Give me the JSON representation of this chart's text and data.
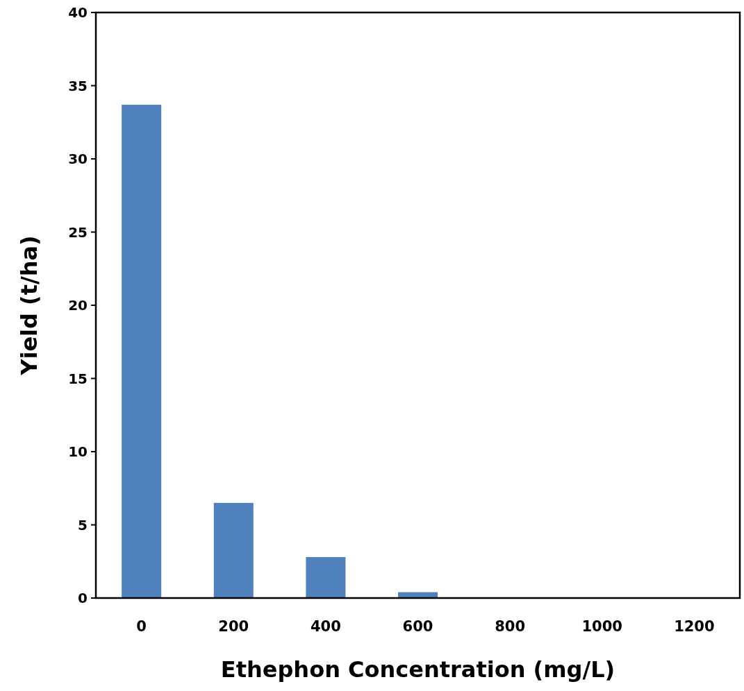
{
  "chart_data": {
    "type": "bar",
    "xlabel": "Ethephon Concentration (mg/L)",
    "ylabel": "Yield (t/ha)",
    "categories": [
      "0",
      "200",
      "400",
      "600",
      "800",
      "1000",
      "1200"
    ],
    "values": [
      33.7,
      6.5,
      2.8,
      0.4,
      0,
      0,
      0
    ],
    "color": "#4f81bd",
    "ylim": [
      0,
      40
    ],
    "yticks": [
      0,
      5,
      10,
      15,
      20,
      25,
      30,
      35,
      40
    ],
    "grid": false
  }
}
